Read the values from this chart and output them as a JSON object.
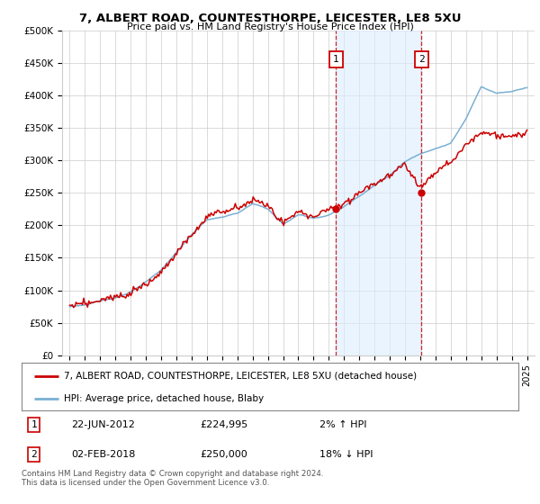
{
  "title": "7, ALBERT ROAD, COUNTESTHORPE, LEICESTER, LE8 5XU",
  "subtitle": "Price paid vs. HM Land Registry's House Price Index (HPI)",
  "ylabel_ticks": [
    "£0",
    "£50K",
    "£100K",
    "£150K",
    "£200K",
    "£250K",
    "£300K",
    "£350K",
    "£400K",
    "£450K",
    "£500K"
  ],
  "ylim": [
    0,
    500000
  ],
  "xlim_start": 1994.5,
  "xlim_end": 2025.5,
  "marker1_x": 2012.47,
  "marker1_y": 224995,
  "marker2_x": 2018.08,
  "marker2_y": 250000,
  "marker1_date": "22-JUN-2012",
  "marker1_price": "£224,995",
  "marker1_hpi": "2% ↑ HPI",
  "marker2_date": "02-FEB-2018",
  "marker2_price": "£250,000",
  "marker2_hpi": "18% ↓ HPI",
  "legend_line1": "7, ALBERT ROAD, COUNTESTHORPE, LEICESTER, LE8 5XU (detached house)",
  "legend_line2": "HPI: Average price, detached house, Blaby",
  "footer": "Contains HM Land Registry data © Crown copyright and database right 2024.\nThis data is licensed under the Open Government Licence v3.0.",
  "red_color": "#cc0000",
  "blue_color": "#7ab0d4",
  "shade_color": "#ddeeff",
  "background_color": "#ffffff",
  "grid_color": "#cccccc",
  "hpi_segments": [
    [
      1995,
      75000
    ],
    [
      1996,
      78000
    ],
    [
      1997,
      83000
    ],
    [
      1998,
      89000
    ],
    [
      1999,
      98000
    ],
    [
      2000,
      112000
    ],
    [
      2001,
      130000
    ],
    [
      2002,
      158000
    ],
    [
      2003,
      185000
    ],
    [
      2004,
      208000
    ],
    [
      2005,
      212000
    ],
    [
      2006,
      218000
    ],
    [
      2007,
      232000
    ],
    [
      2008,
      224000
    ],
    [
      2009,
      200000
    ],
    [
      2010,
      215000
    ],
    [
      2011,
      210000
    ],
    [
      2012,
      215000
    ],
    [
      2013,
      228000
    ],
    [
      2014,
      245000
    ],
    [
      2015,
      262000
    ],
    [
      2016,
      278000
    ],
    [
      2017,
      298000
    ],
    [
      2018,
      310000
    ],
    [
      2019,
      320000
    ],
    [
      2020,
      328000
    ],
    [
      2021,
      365000
    ],
    [
      2022,
      415000
    ],
    [
      2023,
      405000
    ],
    [
      2024,
      408000
    ],
    [
      2025,
      415000
    ]
  ],
  "red_segments": [
    [
      1995,
      75000
    ],
    [
      1996,
      80000
    ],
    [
      1997,
      85000
    ],
    [
      1998,
      92000
    ],
    [
      1999,
      100000
    ],
    [
      2000,
      113000
    ],
    [
      2001,
      132000
    ],
    [
      2002,
      160000
    ],
    [
      2003,
      188000
    ],
    [
      2004,
      215000
    ],
    [
      2005,
      222000
    ],
    [
      2006,
      228000
    ],
    [
      2007,
      240000
    ],
    [
      2008,
      230000
    ],
    [
      2009,
      205000
    ],
    [
      2010,
      220000
    ],
    [
      2011,
      215000
    ],
    [
      2012,
      225000
    ],
    [
      2013,
      232000
    ],
    [
      2014,
      248000
    ],
    [
      2015,
      262000
    ],
    [
      2016,
      272000
    ],
    [
      2017,
      290000
    ],
    [
      2018,
      255000
    ],
    [
      2019,
      280000
    ],
    [
      2020,
      295000
    ],
    [
      2021,
      320000
    ],
    [
      2022,
      340000
    ],
    [
      2023,
      335000
    ],
    [
      2024,
      330000
    ],
    [
      2025,
      338000
    ]
  ]
}
